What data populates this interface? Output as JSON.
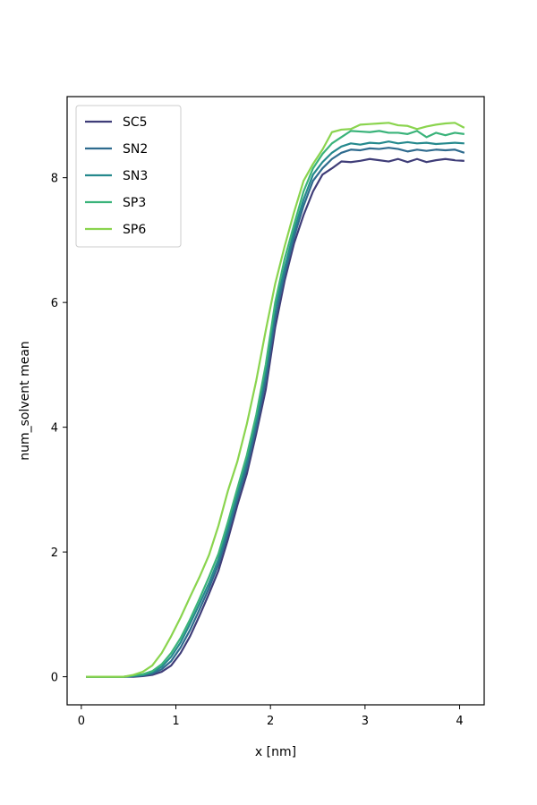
{
  "chart_data": {
    "type": "line",
    "title": "",
    "xlabel": "x [nm]",
    "ylabel": "num_solvent mean",
    "xlim": [
      -0.15,
      4.26
    ],
    "ylim": [
      -0.45,
      9.3
    ],
    "xticks": [
      0,
      1,
      2,
      3,
      4
    ],
    "yticks": [
      0,
      2,
      4,
      6,
      8
    ],
    "grid": false,
    "legend_position": "upper-left",
    "x": [
      0.05,
      0.15,
      0.25,
      0.35,
      0.45,
      0.55,
      0.65,
      0.75,
      0.85,
      0.95,
      1.05,
      1.15,
      1.25,
      1.35,
      1.45,
      1.55,
      1.65,
      1.75,
      1.85,
      1.95,
      2.05,
      2.15,
      2.25,
      2.35,
      2.45,
      2.55,
      2.65,
      2.75,
      2.85,
      2.95,
      3.05,
      3.15,
      3.25,
      3.35,
      3.45,
      3.55,
      3.65,
      3.75,
      3.85,
      3.95,
      4.05
    ],
    "series": [
      {
        "name": "SC5",
        "color": "#3f3d78",
        "values": [
          0.0,
          0.0,
          0.0,
          0.0,
          0.0,
          0.0,
          0.01,
          0.03,
          0.08,
          0.18,
          0.38,
          0.65,
          0.98,
          1.33,
          1.7,
          2.2,
          2.75,
          3.25,
          3.9,
          4.6,
          5.6,
          6.35,
          6.95,
          7.4,
          7.78,
          8.05,
          8.15,
          8.26,
          8.25,
          8.27,
          8.3,
          8.28,
          8.26,
          8.3,
          8.25,
          8.3,
          8.25,
          8.28,
          8.3,
          8.28,
          8.27
        ]
      },
      {
        "name": "SN2",
        "color": "#2f6b8e",
        "values": [
          0.0,
          0.0,
          0.0,
          0.0,
          0.0,
          0.01,
          0.02,
          0.05,
          0.12,
          0.25,
          0.47,
          0.75,
          1.08,
          1.42,
          1.8,
          2.3,
          2.85,
          3.35,
          4.0,
          4.75,
          5.75,
          6.45,
          7.05,
          7.55,
          7.95,
          8.15,
          8.3,
          8.4,
          8.45,
          8.44,
          8.47,
          8.46,
          8.48,
          8.46,
          8.42,
          8.45,
          8.43,
          8.45,
          8.44,
          8.45,
          8.4
        ]
      },
      {
        "name": "SN3",
        "color": "#25898d",
        "values": [
          0.0,
          0.0,
          0.0,
          0.0,
          0.0,
          0.01,
          0.03,
          0.07,
          0.16,
          0.32,
          0.55,
          0.85,
          1.17,
          1.5,
          1.88,
          2.38,
          2.92,
          3.45,
          4.1,
          4.9,
          5.9,
          6.55,
          7.15,
          7.65,
          8.05,
          8.25,
          8.4,
          8.5,
          8.55,
          8.53,
          8.56,
          8.55,
          8.58,
          8.55,
          8.57,
          8.55,
          8.56,
          8.54,
          8.55,
          8.56,
          8.55
        ]
      },
      {
        "name": "SP3",
        "color": "#3ab37a",
        "values": [
          0.0,
          0.0,
          0.0,
          0.0,
          0.0,
          0.02,
          0.04,
          0.09,
          0.2,
          0.38,
          0.62,
          0.92,
          1.25,
          1.6,
          1.97,
          2.48,
          3.02,
          3.55,
          4.2,
          5.0,
          6.0,
          6.7,
          7.25,
          7.78,
          8.15,
          8.38,
          8.55,
          8.65,
          8.75,
          8.74,
          8.73,
          8.75,
          8.72,
          8.72,
          8.7,
          8.75,
          8.65,
          8.72,
          8.68,
          8.72,
          8.7
        ]
      },
      {
        "name": "SP6",
        "color": "#8ad44e",
        "values": [
          0.0,
          0.0,
          0.0,
          0.0,
          0.0,
          0.03,
          0.08,
          0.18,
          0.38,
          0.65,
          0.95,
          1.28,
          1.6,
          1.95,
          2.42,
          2.98,
          3.45,
          4.05,
          4.75,
          5.55,
          6.3,
          6.9,
          7.45,
          7.95,
          8.22,
          8.45,
          8.73,
          8.77,
          8.78,
          8.85,
          8.86,
          8.87,
          8.88,
          8.84,
          8.83,
          8.78,
          8.82,
          8.85,
          8.87,
          8.88,
          8.8
        ]
      }
    ]
  }
}
